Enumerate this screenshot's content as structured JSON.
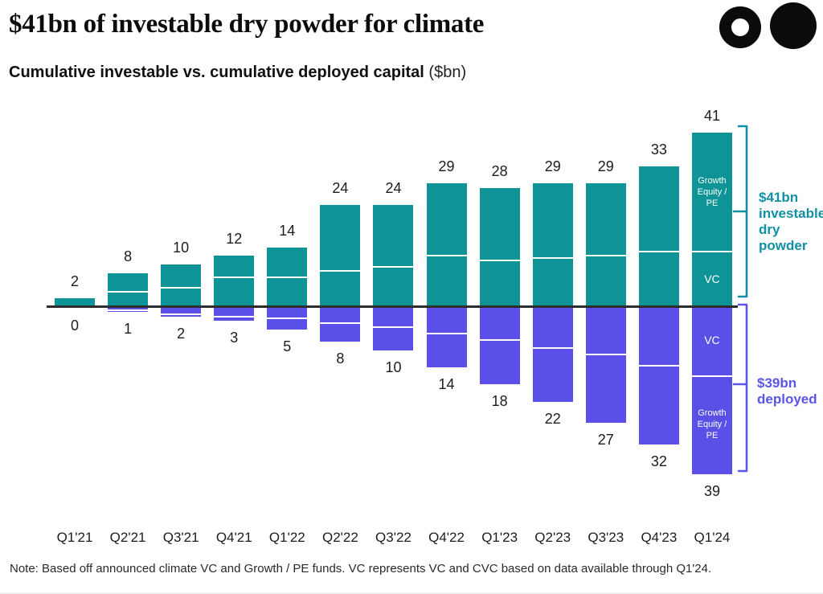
{
  "page": {
    "title": "$41bn of investable dry powder for climate",
    "subtitle_bold": "Cumulative investable vs. cumulative deployed capital",
    "subtitle_rest": " ($bn)",
    "note": "Note: Based off announced climate VC and Growth / PE funds. VC represents VC and CVC based on data available through Q1'24."
  },
  "colors": {
    "investable_bar": "#0e9496",
    "deployed_bar": "#5a4fe6",
    "investable_annotation": "#1090a2",
    "deployed_annotation": "#5c55ec",
    "axis_line": "#2d2d2d",
    "value_label": "#1c1c1c"
  },
  "chart_data": {
    "type": "bar",
    "subtype": "diverging-stacked",
    "title": "$41bn of investable dry powder for climate",
    "subtitle": "Cumulative investable vs. cumulative deployed capital ($bn)",
    "unit": "$bn",
    "categories": [
      "Q1'21",
      "Q2'21",
      "Q3'21",
      "Q4'21",
      "Q1'22",
      "Q2'22",
      "Q3'22",
      "Q4'22",
      "Q1'23",
      "Q2'23",
      "Q3'23",
      "Q4'23",
      "Q1'24"
    ],
    "grid": false,
    "legend": "in-bar labels on last category",
    "investable": {
      "name": "Cumulative investable",
      "direction": "up",
      "totals": [
        2,
        8,
        10,
        12,
        14,
        24,
        24,
        29,
        28,
        29,
        29,
        33,
        41
      ],
      "vc_segment": [
        2,
        3.5,
        4.5,
        7,
        7,
        8.5,
        9.5,
        12,
        11,
        11.5,
        12,
        13,
        13
      ],
      "growth_equity_pe_segment": [
        0,
        4.5,
        5.5,
        5,
        7,
        15.5,
        14.5,
        17,
        17,
        17.5,
        17,
        20,
        28
      ],
      "axis_range": [
        0,
        41
      ]
    },
    "deployed": {
      "name": "Cumulative deployed",
      "direction": "down",
      "totals": [
        0,
        1,
        2,
        3,
        5,
        8,
        10,
        14,
        18,
        22,
        27,
        32,
        39
      ],
      "vc_segment": [
        0,
        0.5,
        1.5,
        2,
        2.5,
        3.5,
        4.5,
        6,
        7.5,
        9.5,
        11,
        13.5,
        16
      ],
      "growth_equity_pe_segment": [
        0,
        0.5,
        0.5,
        1,
        2.5,
        4.5,
        5.5,
        8,
        10.5,
        12.5,
        16,
        18.5,
        23
      ],
      "axis_range": [
        0,
        39
      ]
    },
    "segment_order": "VC adjacent to axis, Growth Equity / PE at outer end (labeled on Q1'24 bars)",
    "bar_segment_labels": {
      "growth_lines": [
        "Growth",
        "Equity /",
        "PE"
      ],
      "vc": "VC"
    },
    "annotations": [
      {
        "target": "investable",
        "lines": [
          "$41bn",
          "investable",
          "dry powder"
        ]
      },
      {
        "target": "deployed",
        "lines": [
          "$39bn",
          "deployed"
        ]
      }
    ]
  }
}
